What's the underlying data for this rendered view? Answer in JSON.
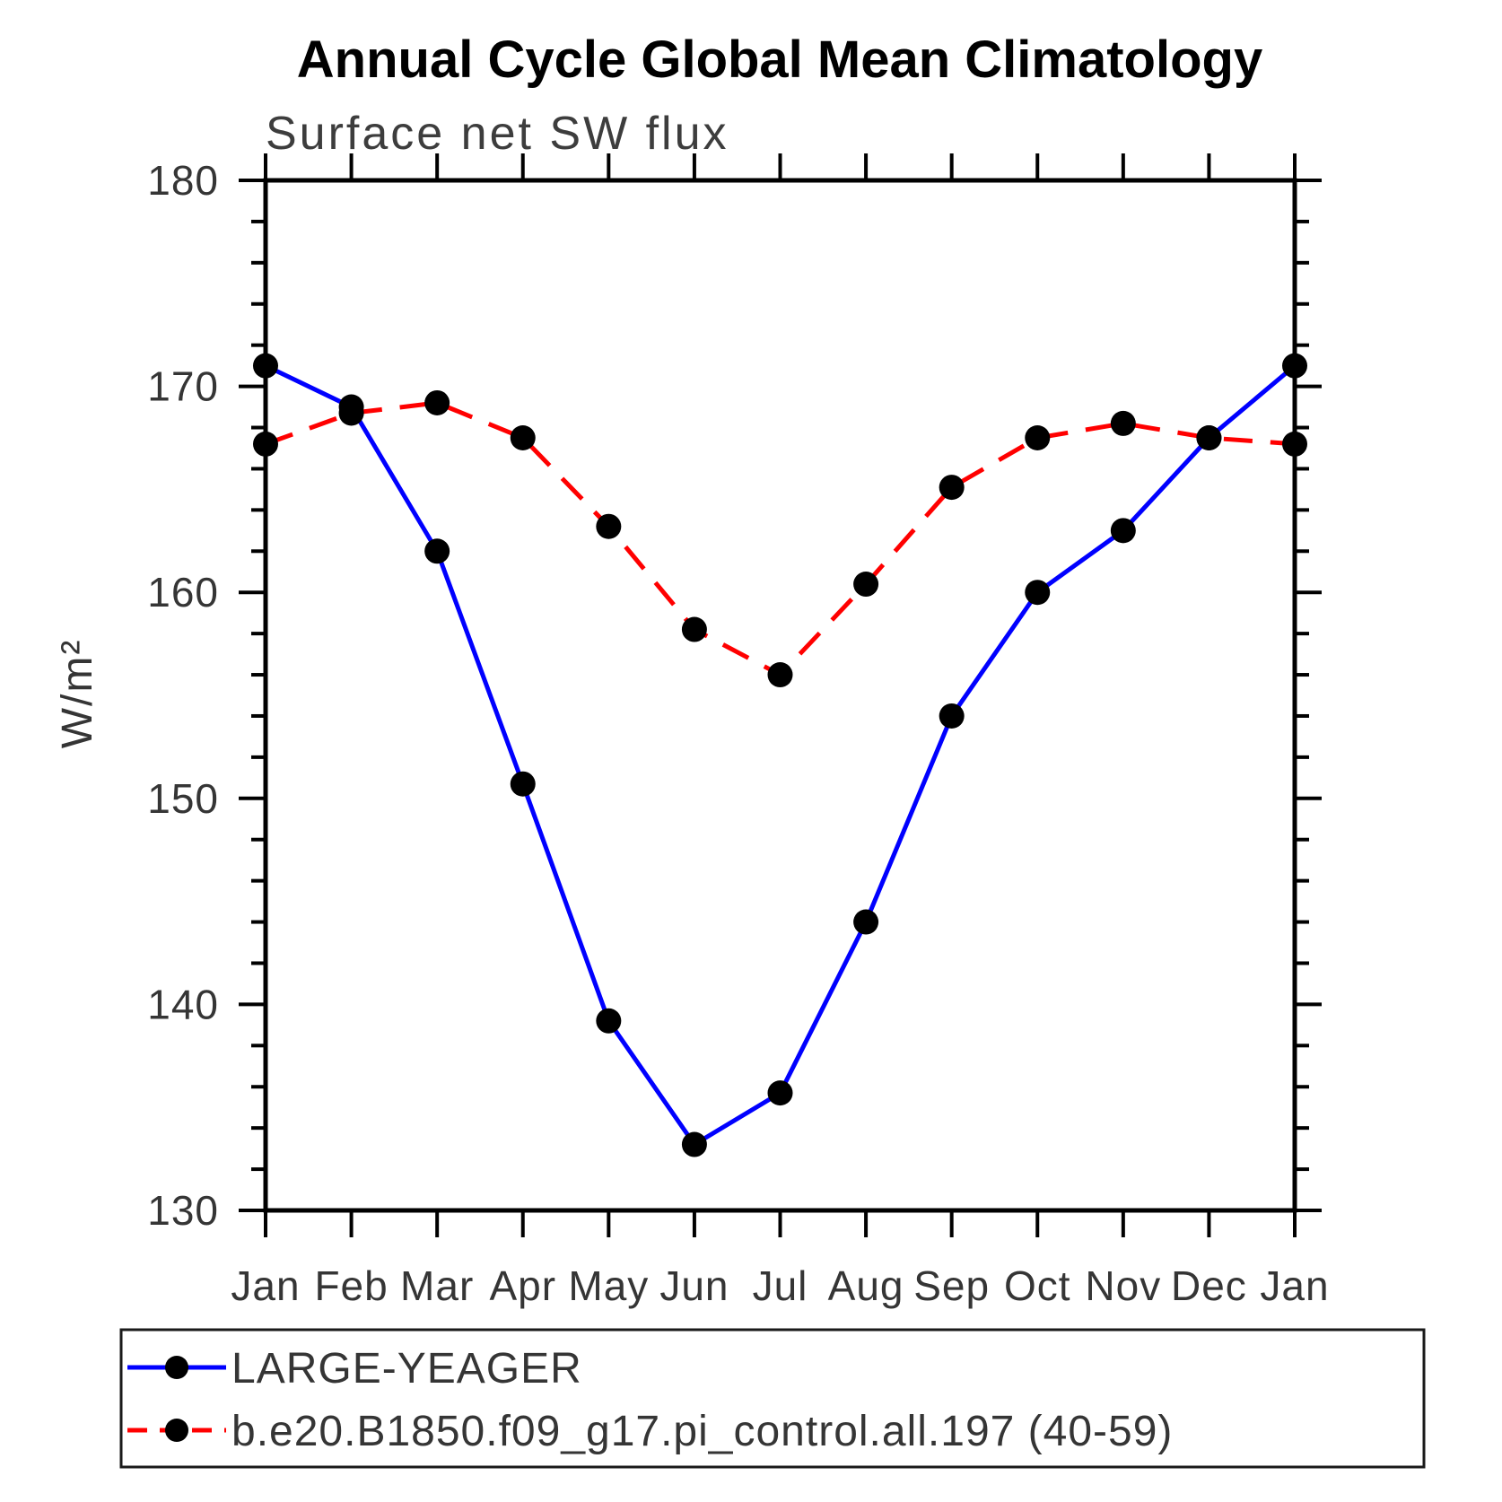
{
  "page": {
    "background": "#ffffff"
  },
  "chart_data": {
    "type": "line",
    "title": "Annual Cycle Global Mean Climatology",
    "subtitle": "Surface net SW flux",
    "ylabel": "W/m²",
    "xlabel": "",
    "x_categories": [
      "Jan",
      "Feb",
      "Mar",
      "Apr",
      "May",
      "Jun",
      "Jul",
      "Aug",
      "Sep",
      "Oct",
      "Nov",
      "Dec",
      "Jan"
    ],
    "ylim": [
      130,
      180
    ],
    "y_major_tick_step": 10,
    "y_minor_tick_step": 2,
    "y_major_ticks": [
      130,
      140,
      150,
      160,
      170,
      180
    ],
    "grid": false,
    "legend_position": "bottom-box",
    "axis_color": "#000000",
    "marker_shape": "filled-circle",
    "series": [
      {
        "name": "LARGE-YEAGER",
        "color": "#0000ff",
        "line_style": "solid",
        "marker_color": "#000000",
        "values": [
          171.0,
          169.0,
          162.0,
          150.7,
          139.2,
          133.2,
          135.7,
          144.0,
          154.0,
          160.0,
          163.0,
          167.5,
          171.0
        ]
      },
      {
        "name": "b.e20.B1850.f09_g17.pi_control.all.197 (40-59)",
        "color": "#ff0000",
        "line_style": "dashed",
        "marker_color": "#000000",
        "values": [
          167.2,
          168.7,
          169.2,
          167.5,
          163.2,
          158.2,
          156.0,
          160.4,
          165.1,
          167.5,
          168.2,
          167.5,
          167.2
        ]
      }
    ]
  }
}
